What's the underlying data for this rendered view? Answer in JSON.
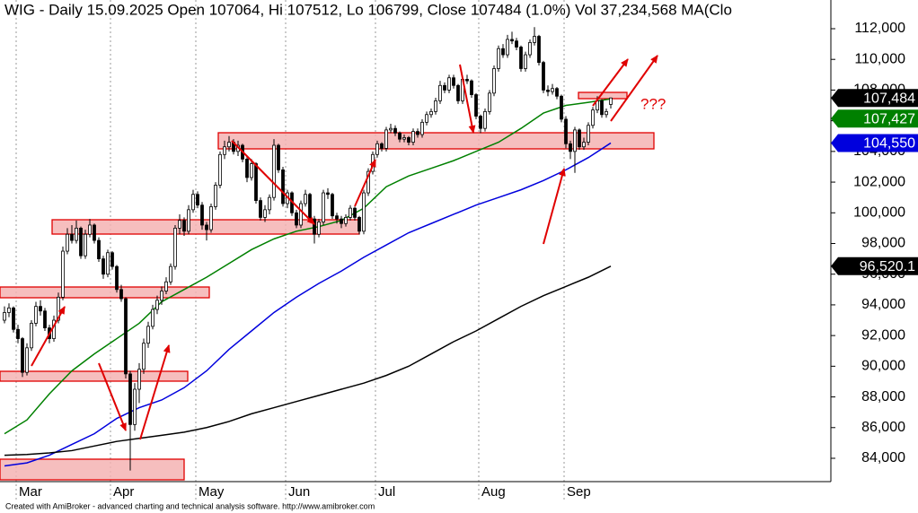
{
  "chart_data": {
    "type": "candlestick",
    "title": "WIG - Daily 15.09.2025 Open 107064, Hi 107512, Lo 106799, Close 107484 (1.0%) Vol 37,234,568 MA(Clo",
    "footer": "Created with AmiBroker - advanced charting and technical analysis software. http://www.amibroker.com",
    "annotation": "???",
    "ylim": [
      82480,
      113870
    ],
    "yticks": [
      {
        "value": 84000,
        "label": "84,000"
      },
      {
        "value": 86000,
        "label": "86,000"
      },
      {
        "value": 88000,
        "label": "88,000"
      },
      {
        "value": 90000,
        "label": "90,000"
      },
      {
        "value": 92000,
        "label": "92,000"
      },
      {
        "value": 94000,
        "label": "94,000"
      },
      {
        "value": 96000,
        "label": "96,000"
      },
      {
        "value": 98000,
        "label": "98,000"
      },
      {
        "value": 100000,
        "label": "100,000"
      },
      {
        "value": 102000,
        "label": "102,000"
      },
      {
        "value": 104000,
        "label": "104,000"
      },
      {
        "value": 106000,
        "label": "106,000"
      },
      {
        "value": 108000,
        "label": "108,000"
      },
      {
        "value": 110000,
        "label": "110,000"
      },
      {
        "value": 112000,
        "label": "112,000"
      }
    ],
    "grid": true,
    "categories": [
      null,
      null,
      null,
      "Mar",
      null,
      null,
      null,
      null,
      null,
      null,
      null,
      null,
      null,
      null,
      null,
      null,
      null,
      null,
      null,
      null,
      null,
      null,
      null,
      null,
      "Apr",
      null,
      null,
      null,
      null,
      null,
      null,
      null,
      null,
      null,
      null,
      null,
      null,
      null,
      null,
      null,
      null,
      null,
      null,
      "May",
      null,
      null,
      null,
      null,
      null,
      null,
      null,
      null,
      null,
      null,
      null,
      null,
      null,
      null,
      null,
      null,
      null,
      null,
      null,
      "Jun",
      null,
      null,
      null,
      null,
      null,
      null,
      null,
      null,
      null,
      null,
      null,
      null,
      null,
      null,
      null,
      null,
      null,
      null,
      null,
      "Jul",
      null,
      null,
      null,
      null,
      null,
      null,
      null,
      null,
      null,
      null,
      null,
      null,
      null,
      null,
      null,
      null,
      null,
      null,
      null,
      null,
      null,
      null,
      "Aug",
      null,
      null,
      null,
      null,
      null,
      null,
      null,
      null,
      null,
      null,
      null,
      null,
      null,
      null,
      null,
      null,
      null,
      null,
      "Sep",
      null,
      null,
      null,
      null,
      null,
      null,
      null,
      null,
      null,
      null
    ],
    "candles": [
      [
        93000,
        93900,
        92800,
        93500
      ],
      [
        93500,
        94100,
        93200,
        93800
      ],
      [
        93800,
        93900,
        92200,
        92400
      ],
      [
        92400,
        92700,
        91500,
        91800
      ],
      [
        91800,
        91900,
        89300,
        89600
      ],
      [
        89600,
        91500,
        89400,
        91200
      ],
      [
        91200,
        93000,
        91000,
        92800
      ],
      [
        92800,
        94200,
        92600,
        93900
      ],
      [
        93900,
        94300,
        93300,
        93600
      ],
      [
        93600,
        93800,
        92300,
        92500
      ],
      [
        92500,
        92700,
        91500,
        91800
      ],
      [
        91800,
        93300,
        91600,
        93000
      ],
      [
        93000,
        94800,
        92800,
        94500
      ],
      [
        94500,
        97800,
        94300,
        97500
      ],
      [
        97500,
        99000,
        97300,
        98600
      ],
      [
        98600,
        99200,
        98000,
        98200
      ],
      [
        98200,
        99500,
        98000,
        99000
      ],
      [
        99000,
        99100,
        97000,
        97200
      ],
      [
        97200,
        98900,
        97000,
        98600
      ],
      [
        98600,
        99600,
        98400,
        99200
      ],
      [
        99200,
        99300,
        98000,
        98200
      ],
      [
        98200,
        98400,
        96800,
        97000
      ],
      [
        97000,
        97200,
        95700,
        96000
      ],
      [
        96000,
        97600,
        95800,
        97400
      ],
      [
        97400,
        97500,
        96300,
        96500
      ],
      [
        96500,
        96600,
        94800,
        95000
      ],
      [
        95000,
        95300,
        94200,
        94400
      ],
      [
        94400,
        94500,
        89200,
        89500
      ],
      [
        89500,
        89700,
        83200,
        86200
      ],
      [
        86200,
        88900,
        85800,
        88500
      ],
      [
        88500,
        90200,
        87600,
        89800
      ],
      [
        89800,
        91800,
        89500,
        91500
      ],
      [
        91500,
        92900,
        91200,
        92600
      ],
      [
        92600,
        94000,
        92400,
        93700
      ],
      [
        93700,
        94600,
        93400,
        94300
      ],
      [
        94300,
        95200,
        94000,
        94900
      ],
      [
        94900,
        95800,
        94700,
        95500
      ],
      [
        95500,
        96700,
        95300,
        96500
      ],
      [
        96500,
        99200,
        96300,
        99000
      ],
      [
        99000,
        99900,
        98600,
        99500
      ],
      [
        99500,
        99700,
        98500,
        98800
      ],
      [
        98800,
        100500,
        98600,
        100200
      ],
      [
        100200,
        101500,
        100000,
        101200
      ],
      [
        101200,
        101400,
        100300,
        100500
      ],
      [
        100500,
        100700,
        98900,
        99200
      ],
      [
        99200,
        99400,
        98200,
        98900
      ],
      [
        98900,
        100600,
        98700,
        100400
      ],
      [
        100400,
        102000,
        100200,
        101800
      ],
      [
        101800,
        104000,
        101600,
        103800
      ],
      [
        103800,
        104700,
        103500,
        104300
      ],
      [
        104300,
        105000,
        104000,
        104600
      ],
      [
        104600,
        104800,
        103800,
        104000
      ],
      [
        104000,
        104700,
        103700,
        104400
      ],
      [
        104400,
        104500,
        103300,
        103500
      ],
      [
        103500,
        103700,
        102000,
        102300
      ],
      [
        102300,
        103500,
        102100,
        103200
      ],
      [
        103200,
        103300,
        100600,
        100800
      ],
      [
        100800,
        101000,
        99500,
        99700
      ],
      [
        99700,
        100500,
        99400,
        100200
      ],
      [
        100200,
        101200,
        99900,
        101000
      ],
      [
        101000,
        104800,
        100800,
        104400
      ],
      [
        104400,
        104500,
        102600,
        102800
      ],
      [
        102800,
        103000,
        100400,
        100600
      ],
      [
        100600,
        101500,
        100300,
        101300
      ],
      [
        101300,
        101400,
        99800,
        100000
      ],
      [
        100000,
        100200,
        99000,
        99200
      ],
      [
        99200,
        100800,
        99000,
        100600
      ],
      [
        100600,
        101500,
        100400,
        101200
      ],
      [
        101200,
        101300,
        99400,
        99600
      ],
      [
        99600,
        99800,
        98000,
        98600
      ],
      [
        98600,
        99600,
        98400,
        99400
      ],
      [
        99400,
        101500,
        99200,
        101300
      ],
      [
        101300,
        101600,
        100900,
        101200
      ],
      [
        101200,
        101300,
        99600,
        99800
      ],
      [
        99800,
        100000,
        99300,
        99600
      ],
      [
        99600,
        99800,
        99000,
        99300
      ],
      [
        99300,
        99900,
        99100,
        99700
      ],
      [
        99700,
        100500,
        99500,
        100300
      ],
      [
        100300,
        100400,
        99500,
        99700
      ],
      [
        99700,
        99800,
        98600,
        98800
      ],
      [
        98800,
        101500,
        98600,
        101300
      ],
      [
        101300,
        102900,
        101100,
        102700
      ],
      [
        102700,
        104000,
        102500,
        103800
      ],
      [
        103800,
        104700,
        103600,
        104500
      ],
      [
        104500,
        104600,
        104000,
        104200
      ],
      [
        104200,
        105600,
        104000,
        105400
      ],
      [
        105400,
        105800,
        105200,
        105500
      ],
      [
        105500,
        105700,
        105000,
        105200
      ],
      [
        105200,
        105300,
        104600,
        104800
      ],
      [
        104800,
        105100,
        104600,
        104900
      ],
      [
        104900,
        105000,
        104400,
        104600
      ],
      [
        104600,
        105500,
        104400,
        105300
      ],
      [
        105300,
        105500,
        104900,
        105100
      ],
      [
        105100,
        106100,
        104900,
        105900
      ],
      [
        105900,
        106600,
        105700,
        106400
      ],
      [
        106400,
        106800,
        106200,
        106600
      ],
      [
        106600,
        107500,
        106400,
        107300
      ],
      [
        107300,
        108600,
        107100,
        108300
      ],
      [
        108300,
        108500,
        107800,
        108000
      ],
      [
        108000,
        109000,
        107800,
        108800
      ],
      [
        108800,
        109000,
        108100,
        108300
      ],
      [
        108300,
        108400,
        107100,
        107300
      ],
      [
        107300,
        108900,
        107100,
        108700
      ],
      [
        108700,
        109000,
        108400,
        108600
      ],
      [
        108600,
        108700,
        107500,
        107700
      ],
      [
        107700,
        107800,
        106100,
        106300
      ],
      [
        106300,
        106400,
        105200,
        105500
      ],
      [
        105500,
        106800,
        105300,
        106600
      ],
      [
        106600,
        108000,
        106400,
        107800
      ],
      [
        107800,
        109600,
        107600,
        109400
      ],
      [
        109400,
        110900,
        109200,
        110700
      ],
      [
        110700,
        111000,
        110100,
        110300
      ],
      [
        110300,
        111600,
        110100,
        111300
      ],
      [
        111300,
        111800,
        111000,
        111200
      ],
      [
        111200,
        111400,
        110600,
        110800
      ],
      [
        110800,
        110900,
        109200,
        109400
      ],
      [
        109400,
        110500,
        109200,
        110300
      ],
      [
        110300,
        111300,
        110100,
        111100
      ],
      [
        111100,
        112100,
        110900,
        111500
      ],
      [
        111500,
        111600,
        109600,
        109800
      ],
      [
        109800,
        109900,
        107800,
        108000
      ],
      [
        108000,
        108300,
        107600,
        107900
      ],
      [
        107900,
        108400,
        107700,
        108100
      ],
      [
        108100,
        108200,
        107400,
        107600
      ],
      [
        107600,
        107700,
        105900,
        106100
      ],
      [
        106100,
        106300,
        104200,
        104500
      ],
      [
        104500,
        104700,
        103500,
        104000
      ],
      [
        104000,
        105600,
        102600,
        105400
      ],
      [
        105400,
        105500,
        104100,
        104300
      ],
      [
        104300,
        104900,
        104100,
        104600
      ],
      [
        104600,
        105900,
        104400,
        105700
      ],
      [
        105700,
        106900,
        105500,
        106700
      ],
      [
        106700,
        107600,
        106500,
        107300
      ],
      [
        107300,
        107400,
        106200,
        106400
      ],
      [
        106400,
        106800,
        106200,
        106600
      ],
      [
        107064,
        107512,
        106799,
        107484
      ]
    ],
    "series": [
      {
        "color": "#008000",
        "x": [
          0,
          5,
          10,
          15,
          20,
          25,
          30,
          35,
          40,
          45,
          50,
          55,
          60,
          65,
          70,
          75,
          80,
          85,
          90,
          95,
          100,
          105,
          110,
          115,
          120,
          125,
          130,
          135
        ],
        "values": [
          85600,
          86500,
          88200,
          89700,
          90800,
          91800,
          92800,
          94200,
          95000,
          95800,
          96700,
          97600,
          98300,
          98800,
          99100,
          99500,
          100300,
          101700,
          102400,
          102900,
          103400,
          104000,
          104600,
          105500,
          106500,
          107000,
          107200,
          107427
        ]
      },
      {
        "color": "#0000dd",
        "x": [
          0,
          5,
          10,
          15,
          20,
          25,
          30,
          35,
          40,
          45,
          50,
          55,
          60,
          65,
          70,
          75,
          80,
          85,
          90,
          95,
          100,
          105,
          110,
          115,
          120,
          125,
          130,
          135
        ],
        "values": [
          83500,
          83700,
          84200,
          84900,
          85600,
          86600,
          87300,
          87800,
          88600,
          89700,
          91100,
          92300,
          93500,
          94500,
          95400,
          96200,
          97100,
          97900,
          98700,
          99300,
          99900,
          100500,
          101000,
          101500,
          102100,
          102800,
          103600,
          104550
        ]
      },
      {
        "color": "#000000",
        "x": [
          0,
          5,
          10,
          15,
          20,
          25,
          30,
          35,
          40,
          45,
          50,
          55,
          60,
          65,
          70,
          75,
          80,
          85,
          90,
          95,
          100,
          105,
          110,
          115,
          120,
          125,
          130,
          135
        ],
        "values": [
          84200,
          84250,
          84350,
          84500,
          84800,
          85100,
          85300,
          85500,
          85700,
          86000,
          86400,
          86900,
          87300,
          87700,
          88100,
          88500,
          88900,
          89400,
          90000,
          90800,
          91600,
          92300,
          93100,
          93900,
          94600,
          95200,
          95800,
          96520.1
        ]
      }
    ],
    "end_labels": [
      {
        "value": 107484,
        "label": "107,484",
        "color": "#000000"
      },
      {
        "value": 107427,
        "label": "107,427",
        "color": "#008000"
      },
      {
        "value": 104550,
        "label": "104,550",
        "color": "#0000dd"
      },
      {
        "value": 96520.1,
        "label": "96,520.1",
        "color": "#000000"
      }
    ]
  }
}
